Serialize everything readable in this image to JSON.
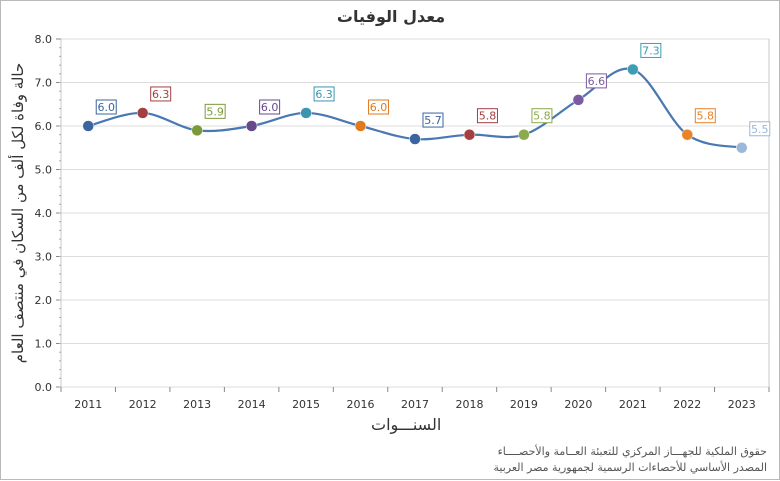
{
  "chart_data": {
    "type": "line",
    "title": "معدل الوفيات",
    "xlabel": "السنـــوات",
    "ylabel": "حالة وفاة لكل ألف من السكان في منتصف العام",
    "categories": [
      "2011",
      "2012",
      "2013",
      "2014",
      "2015",
      "2016",
      "2017",
      "2018",
      "2019",
      "2020",
      "2021",
      "2022",
      "2023"
    ],
    "values": [
      6.0,
      6.3,
      5.9,
      6.0,
      6.3,
      6.0,
      5.7,
      5.8,
      5.8,
      6.6,
      7.3,
      5.8,
      5.5
    ],
    "point_colors": [
      "#3b64a0",
      "#a33f41",
      "#7a9a3a",
      "#654a8a",
      "#3c95ad",
      "#e07a1f",
      "#3b64a0",
      "#a33f41",
      "#8aaa4c",
      "#7a5ba1",
      "#3c9db5",
      "#e8832a",
      "#9bb7d9"
    ],
    "label_borders": [
      "#3b64a0",
      "#a33f41",
      "#7a9a3a",
      "#654a8a",
      "#3c95ad",
      "#e07a1f",
      "#3b64a0",
      "#a33f41",
      "#8aaa4c",
      "#7a5ba1",
      "#3c9db5",
      "#e8832a",
      "#9bb7d9"
    ],
    "line_color": "#4a78b0",
    "ylim": [
      0,
      8
    ],
    "yticks": [
      "0.0",
      "1.0",
      "2.0",
      "3.0",
      "4.0",
      "5.0",
      "6.0",
      "7.0",
      "8.0"
    ],
    "grid": true,
    "legend": "none"
  },
  "footer": {
    "line1": "حقوق الملكية للجهـــاز المركزي للتعبئة العــامة والأحصــــاء",
    "line2": "المصدر الأساسي للأحصاءات الرسمية لجمهورية مصر العربية"
  }
}
